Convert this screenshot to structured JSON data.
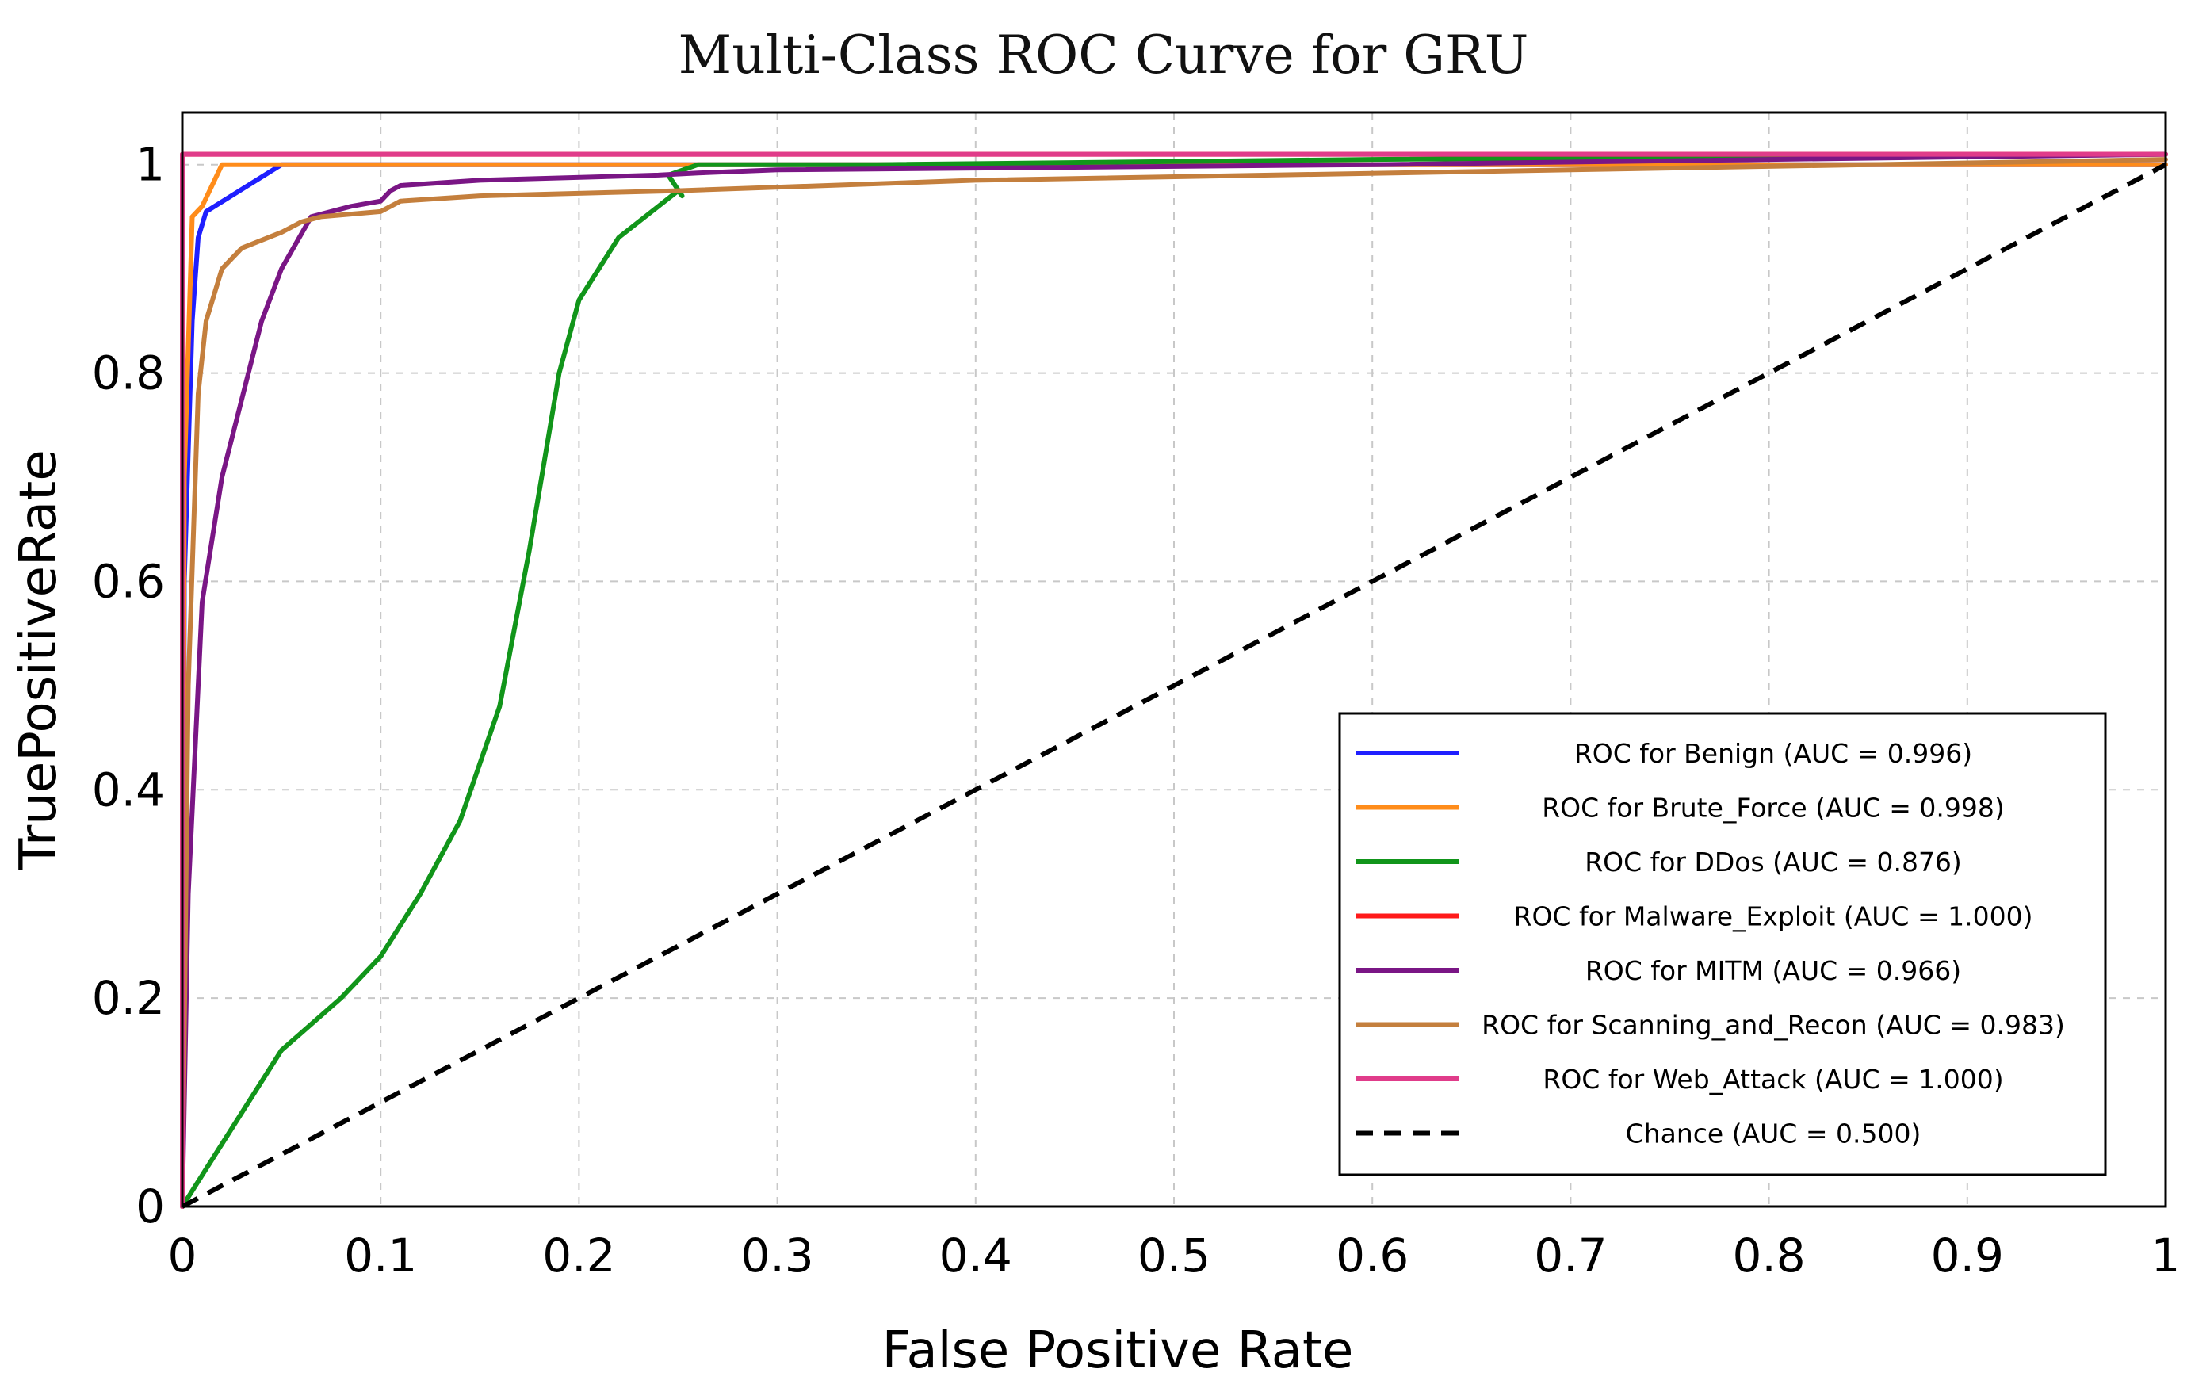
{
  "chart_data": {
    "type": "line",
    "title": "Multi-Class ROC Curve for GRU",
    "xlabel": "False Positive Rate",
    "ylabel": "TruePositiveRate",
    "xlim": [
      0,
      1
    ],
    "ylim": [
      0,
      1.05
    ],
    "xticks": [
      0,
      0.1,
      0.2,
      0.3,
      0.4,
      0.5,
      0.6,
      0.7,
      0.8,
      0.9,
      1
    ],
    "xtick_labels": [
      "0",
      "0.1",
      "0.2",
      "0.3",
      "0.4",
      "0.5",
      "0.6",
      "0.7",
      "0.8",
      "0.9",
      "1"
    ],
    "yticks": [
      0,
      0.2,
      0.4,
      0.6,
      0.8,
      1
    ],
    "ytick_labels": [
      "0",
      "0.2",
      "0.4",
      "0.6",
      "0.8",
      "1"
    ],
    "grid": true,
    "legend_position": "lower-right",
    "series": [
      {
        "name": "ROC for Benign (AUC = 0.996)",
        "color": "#1f1fff",
        "dashed": false,
        "x": [
          0,
          0.001,
          0.005,
          0.008,
          0.012,
          0.05,
          0.2,
          0.6,
          1
        ],
        "y": [
          0,
          0.6,
          0.85,
          0.93,
          0.955,
          1.0,
          1.0,
          1.0,
          1.0
        ]
      },
      {
        "name": "ROC for Brute_Force (AUC = 0.998)",
        "color": "#ff8c1a",
        "dashed": false,
        "x": [
          0,
          0.001,
          0.005,
          0.01,
          0.02,
          0.1,
          0.5,
          1
        ],
        "y": [
          0,
          0.7,
          0.95,
          0.96,
          1.0,
          1.0,
          1.0,
          1.0
        ]
      },
      {
        "name": "ROC for DDos (AUC = 0.876)",
        "color": "#11951a",
        "dashed": false,
        "x": [
          0,
          0.02,
          0.05,
          0.08,
          0.1,
          0.12,
          0.14,
          0.16,
          0.175,
          0.19,
          0.2,
          0.22,
          0.24,
          0.25,
          0.252,
          0.245,
          0.26,
          0.35,
          0.6,
          1
        ],
        "y": [
          0,
          0.06,
          0.15,
          0.2,
          0.24,
          0.3,
          0.37,
          0.48,
          0.63,
          0.8,
          0.87,
          0.93,
          0.96,
          0.975,
          0.97,
          0.99,
          1.0,
          1.0,
          1.005,
          1.01
        ]
      },
      {
        "name": "ROC for Malware_Exploit (AUC = 1.000)",
        "color": "#ff1a1a",
        "dashed": false,
        "x": [
          0,
          0,
          1
        ],
        "y": [
          0,
          1.01,
          1.01
        ]
      },
      {
        "name": "ROC for MITM (AUC = 0.966)",
        "color": "#7a1685",
        "dashed": false,
        "x": [
          0,
          0.003,
          0.01,
          0.02,
          0.04,
          0.05,
          0.065,
          0.085,
          0.1,
          0.105,
          0.11,
          0.15,
          0.24,
          0.26,
          0.3,
          0.6,
          1
        ],
        "y": [
          0,
          0.3,
          0.58,
          0.7,
          0.85,
          0.9,
          0.95,
          0.96,
          0.965,
          0.975,
          0.98,
          0.985,
          0.99,
          0.992,
          0.995,
          1.0,
          1.01
        ]
      },
      {
        "name": "ROC for Scanning_and_Recon (AUC = 0.983)",
        "color": "#c47f3d",
        "dashed": false,
        "x": [
          0,
          0.003,
          0.008,
          0.012,
          0.02,
          0.03,
          0.05,
          0.06,
          0.07,
          0.1,
          0.105,
          0.11,
          0.15,
          0.25,
          0.4,
          0.7,
          1
        ],
        "y": [
          0,
          0.5,
          0.78,
          0.85,
          0.9,
          0.92,
          0.935,
          0.945,
          0.95,
          0.955,
          0.96,
          0.965,
          0.97,
          0.975,
          0.985,
          0.995,
          1.005
        ]
      },
      {
        "name": "ROC for Web_Attack (AUC = 1.000)",
        "color": "#e03c8a",
        "dashed": false,
        "x": [
          0,
          0,
          1
        ],
        "y": [
          0,
          1.01,
          1.01
        ]
      },
      {
        "name": "Chance (AUC = 0.500)",
        "color": "#000000",
        "dashed": true,
        "x": [
          0,
          1
        ],
        "y": [
          0,
          1
        ]
      }
    ]
  }
}
